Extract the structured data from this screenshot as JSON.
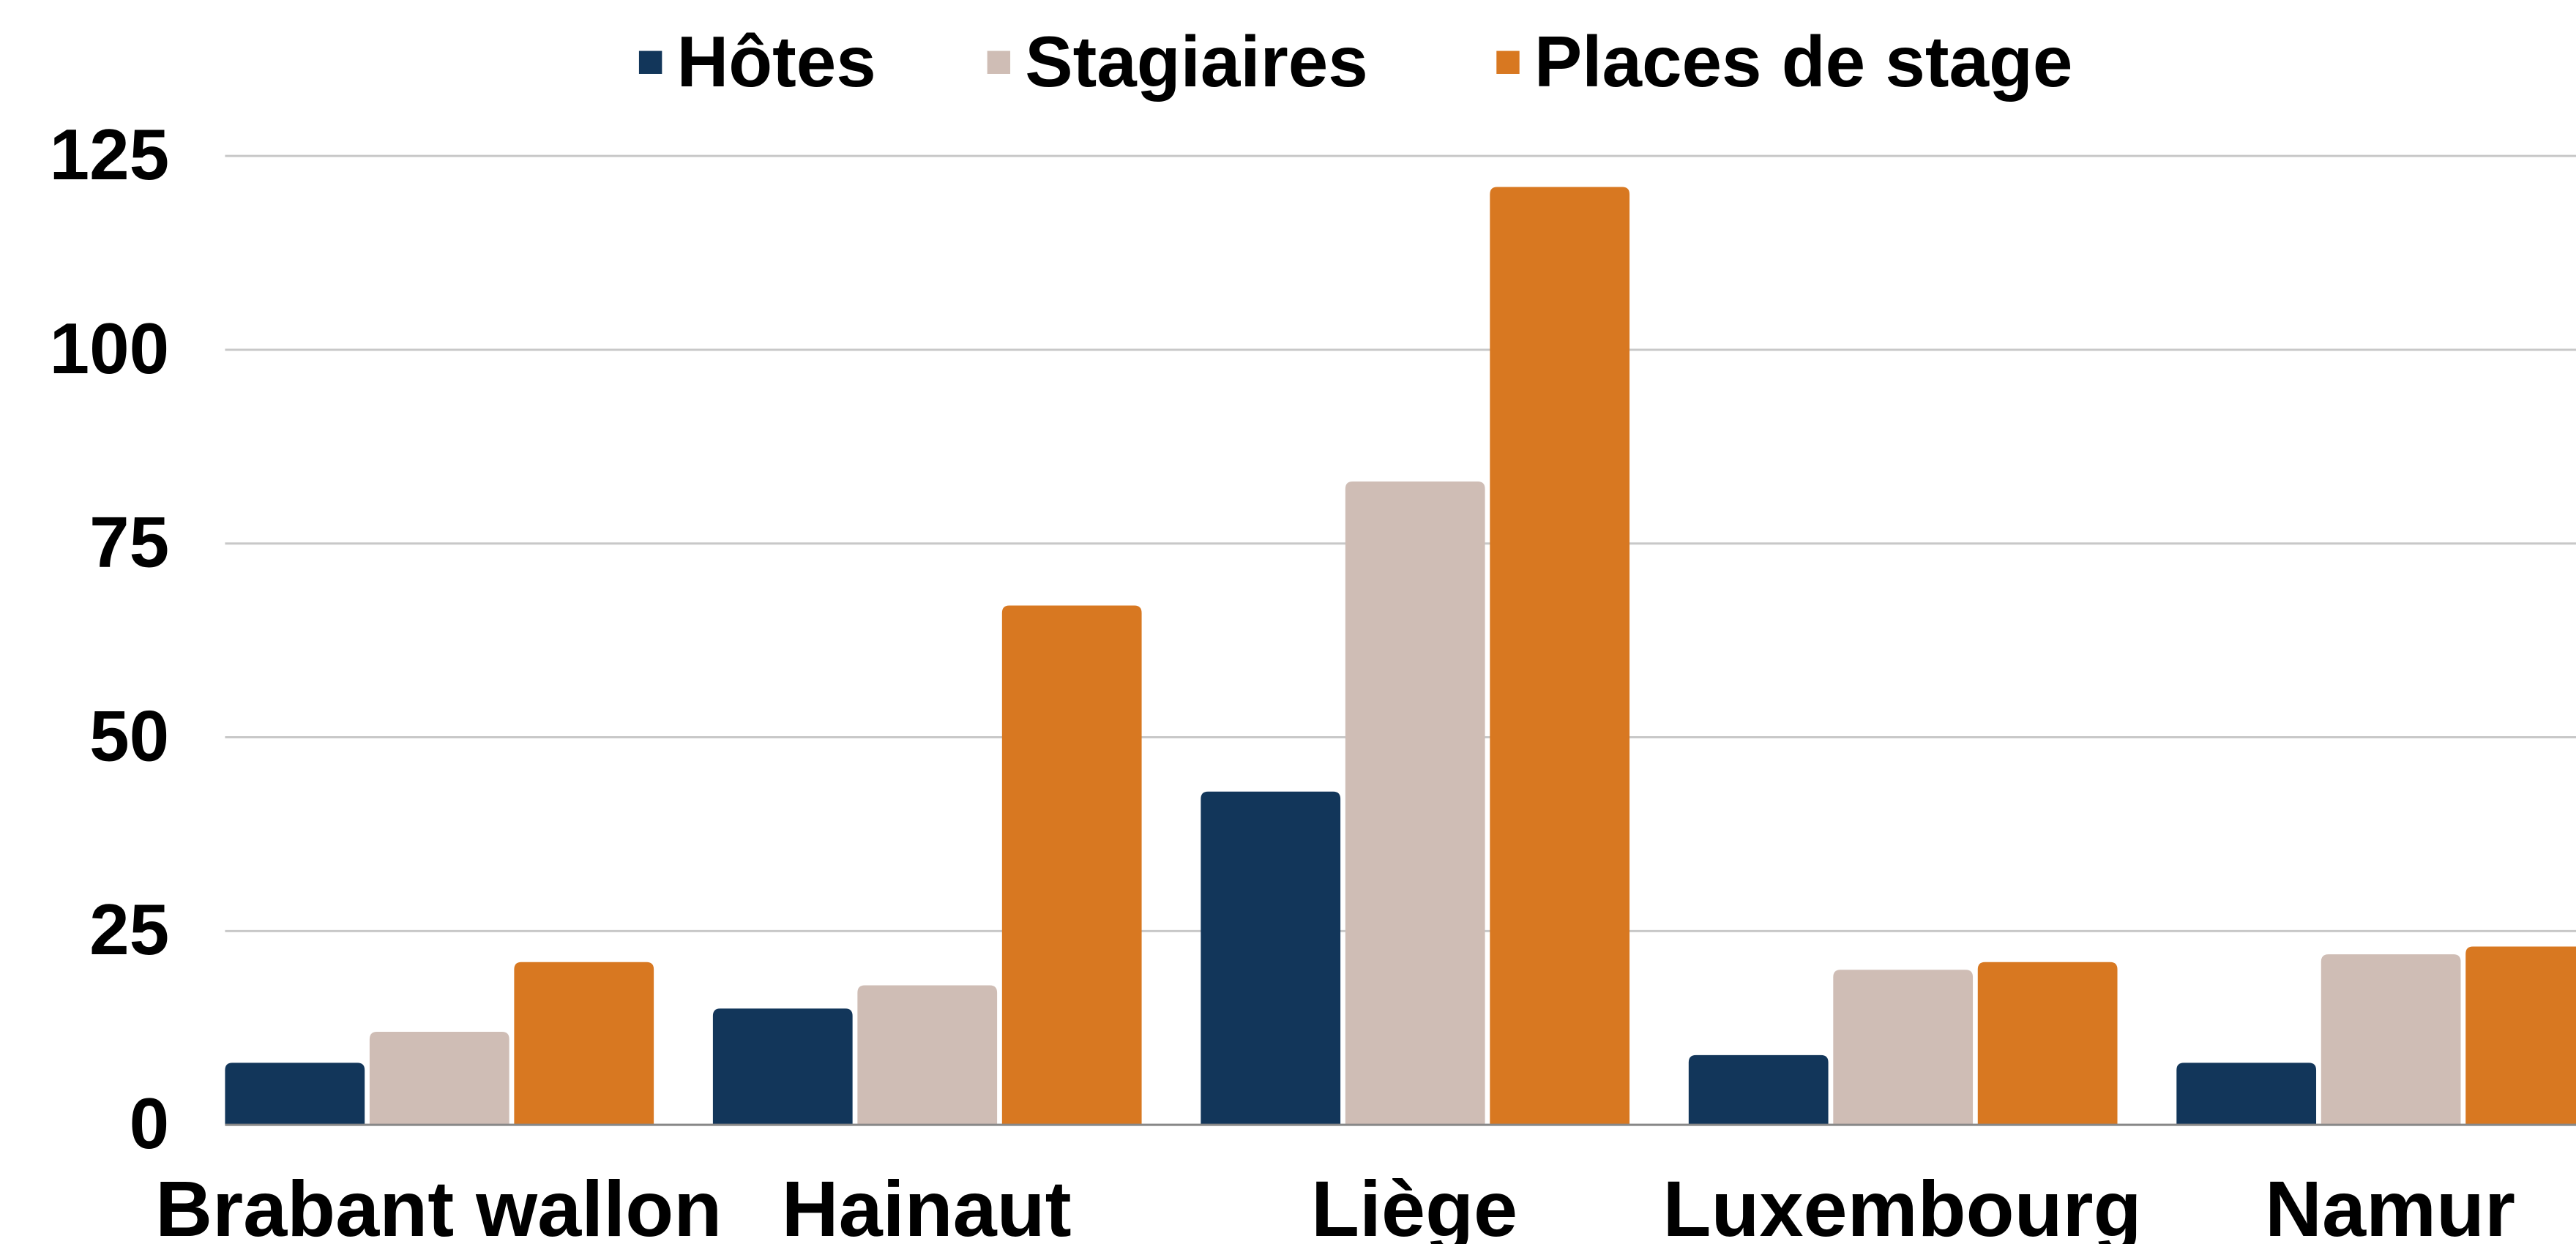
{
  "chart_data": {
    "type": "bar",
    "categories": [
      "Brabant wallon",
      "Hainaut",
      "Liège",
      "Luxembourg",
      "Namur"
    ],
    "series": [
      {
        "name": "Hôtes",
        "color": "#12365a",
        "values": [
          8,
          15,
          43,
          9,
          8
        ]
      },
      {
        "name": "Stagiaires",
        "color": "#cfbdb5",
        "values": [
          12,
          18,
          83,
          20,
          22
        ]
      },
      {
        "name": "Places de stage",
        "color": "#d87821",
        "values": [
          21,
          67,
          121,
          21,
          23
        ]
      }
    ],
    "ylim": [
      0,
      125
    ],
    "yticks": [
      0,
      25,
      50,
      75,
      100,
      125
    ],
    "grid": true,
    "legend": "top"
  }
}
